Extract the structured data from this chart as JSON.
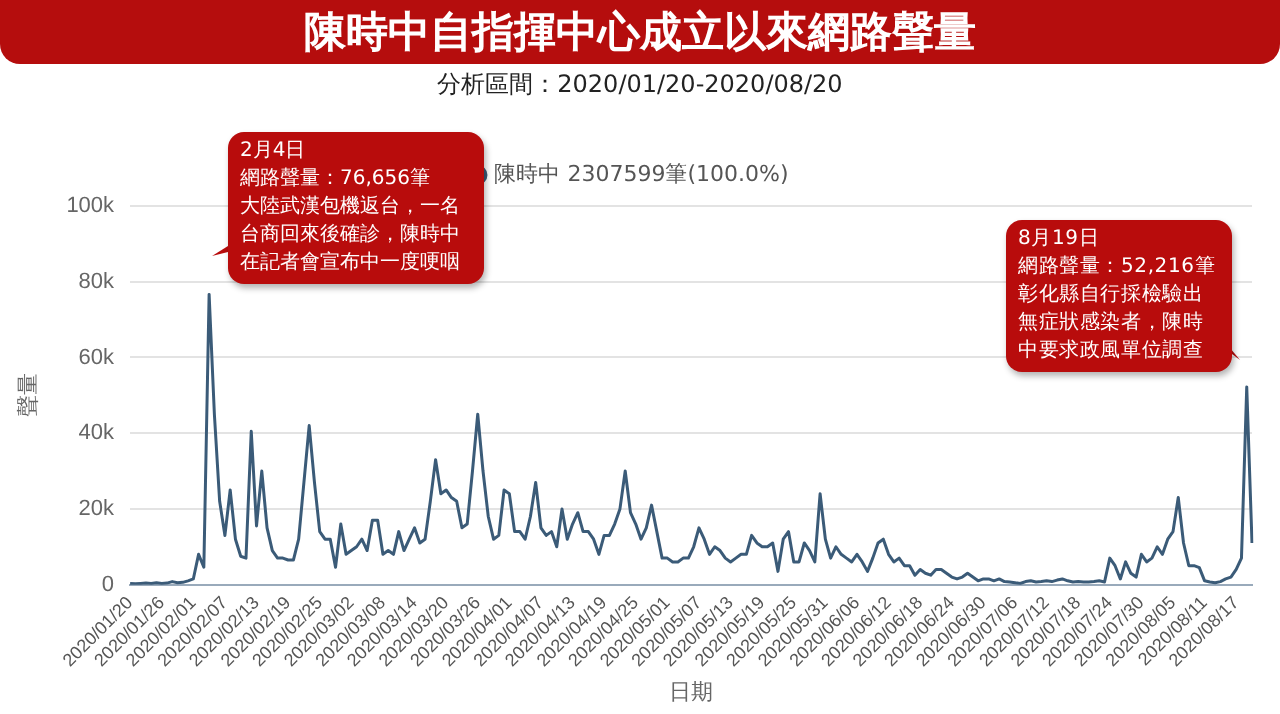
{
  "chart_data": {
    "type": "line",
    "title": "陳時中自指揮中心成立以來網路聲量",
    "subtitle": "分析區間：2020/01/20-2020/08/20",
    "xlabel": "日期",
    "ylabel": "聲量",
    "categories": [
      "2020/01/20",
      null,
      null,
      null,
      null,
      null,
      "2020/01/26",
      null,
      null,
      null,
      null,
      null,
      "2020/02/01",
      null,
      null,
      null,
      null,
      null,
      "2020/02/07",
      null,
      null,
      null,
      null,
      null,
      "2020/02/13",
      null,
      null,
      null,
      null,
      null,
      "2020/02/19",
      null,
      null,
      null,
      null,
      null,
      "2020/02/25",
      null,
      null,
      null,
      null,
      null,
      "2020/03/02",
      null,
      null,
      null,
      null,
      null,
      "2020/03/08",
      null,
      null,
      null,
      null,
      null,
      "2020/03/14",
      null,
      null,
      null,
      null,
      null,
      "2020/03/20",
      null,
      null,
      null,
      null,
      null,
      "2020/03/26",
      null,
      null,
      null,
      null,
      null,
      "2020/04/01",
      null,
      null,
      null,
      null,
      null,
      "2020/04/07",
      null,
      null,
      null,
      null,
      null,
      "2020/04/13",
      null,
      null,
      null,
      null,
      null,
      "2020/04/19",
      null,
      null,
      null,
      null,
      null,
      "2020/04/25",
      null,
      null,
      null,
      null,
      null,
      "2020/05/01",
      null,
      null,
      null,
      null,
      null,
      "2020/05/07",
      null,
      null,
      null,
      null,
      null,
      "2020/05/13",
      null,
      null,
      null,
      null,
      null,
      "2020/05/19",
      null,
      null,
      null,
      null,
      null,
      "2020/05/25",
      null,
      null,
      null,
      null,
      null,
      "2020/05/31",
      null,
      null,
      null,
      null,
      null,
      "2020/06/06",
      null,
      null,
      null,
      null,
      null,
      "2020/06/12",
      null,
      null,
      null,
      null,
      null,
      "2020/06/18",
      null,
      null,
      null,
      null,
      null,
      "2020/06/24",
      null,
      null,
      null,
      null,
      null,
      "2020/06/30",
      null,
      null,
      null,
      null,
      null,
      "2020/07/06",
      null,
      null,
      null,
      null,
      null,
      "2020/07/12",
      null,
      null,
      null,
      null,
      null,
      "2020/07/18",
      null,
      null,
      null,
      null,
      null,
      "2020/07/24",
      null,
      null,
      null,
      null,
      null,
      "2020/07/30",
      null,
      null,
      null,
      null,
      null,
      "2020/08/05",
      null,
      null,
      null,
      null,
      null,
      "2020/08/11",
      null,
      null,
      null,
      null,
      null,
      "2020/08/17",
      null,
      null,
      null
    ],
    "series": [
      {
        "name": "陳時中 2307599筆(100.0%)",
        "color": "#3b5b78",
        "values": [
          300,
          200,
          300,
          400,
          300,
          500,
          300,
          400,
          800,
          500,
          600,
          1000,
          1500,
          8000,
          4600,
          76656,
          45000,
          22000,
          13000,
          25000,
          12000,
          7500,
          7000,
          40500,
          15500,
          30000,
          15000,
          9000,
          7000,
          7000,
          6500,
          6500,
          12000,
          27000,
          42000,
          27000,
          14000,
          12000,
          12000,
          4600,
          16000,
          8000,
          9000,
          10000,
          12000,
          9000,
          17000,
          17000,
          8000,
          9000,
          8000,
          14000,
          9000,
          12000,
          15000,
          11000,
          12000,
          22000,
          33000,
          24000,
          25000,
          23000,
          22000,
          15000,
          16000,
          30000,
          45000,
          30000,
          18000,
          12000,
          13000,
          25000,
          24000,
          14000,
          14000,
          12000,
          18000,
          27000,
          15000,
          13000,
          14000,
          10000,
          20000,
          12000,
          16000,
          19000,
          14000,
          14000,
          12000,
          8000,
          13000,
          13000,
          16000,
          20000,
          30000,
          19000,
          16000,
          12000,
          15000,
          21000,
          14000,
          7000,
          7000,
          6000,
          6000,
          7000,
          7000,
          10000,
          15000,
          12000,
          8000,
          10000,
          9000,
          7000,
          6000,
          7000,
          8000,
          8000,
          13000,
          11000,
          10000,
          10000,
          11000,
          3500,
          12000,
          14000,
          6000,
          6000,
          11000,
          9000,
          6000,
          24000,
          12000,
          7000,
          10000,
          8000,
          7000,
          6000,
          8000,
          6000,
          3500,
          7000,
          11000,
          12000,
          8000,
          6000,
          7000,
          5000,
          5000,
          2500,
          4000,
          3000,
          2500,
          4000,
          4000,
          3000,
          2000,
          1500,
          2000,
          3000,
          2000,
          1000,
          1500,
          1500,
          1000,
          1500,
          800,
          700,
          500,
          300,
          800,
          1000,
          700,
          800,
          1000,
          800,
          1200,
          1500,
          1000,
          700,
          800,
          700,
          700,
          800,
          1000,
          700,
          7000,
          5000,
          1500,
          6000,
          3000,
          2000,
          8000,
          6000,
          7000,
          10000,
          8000,
          12000,
          14000,
          23000,
          11000,
          5000,
          5000,
          4500,
          1000,
          700,
          500,
          800,
          1500,
          2000,
          4000,
          7000,
          52216,
          11000
        ]
      }
    ],
    "ylim": [
      0,
      100000
    ],
    "yticks": [
      0,
      {
        "value": 20000,
        "label": "20k"
      },
      {
        "value": 40000,
        "label": "40k"
      },
      {
        "value": 60000,
        "label": "60k"
      },
      {
        "value": 80000,
        "label": "80k"
      },
      {
        "value": 100000,
        "label": "100k"
      }
    ],
    "grid": "y",
    "legend": "top",
    "marker": "none",
    "annotations": [
      "2月4日",
      "網路聲量：76,656筆",
      "大陸武漢包機返台，一名台商回來後確診，陳時中在記者會宣布中一度哽咽",
      "8月19日",
      "網路聲量：52,216筆",
      "彰化縣自行採檢驗出無症狀感染者，陳時中要求政風單位調查"
    ]
  }
}
